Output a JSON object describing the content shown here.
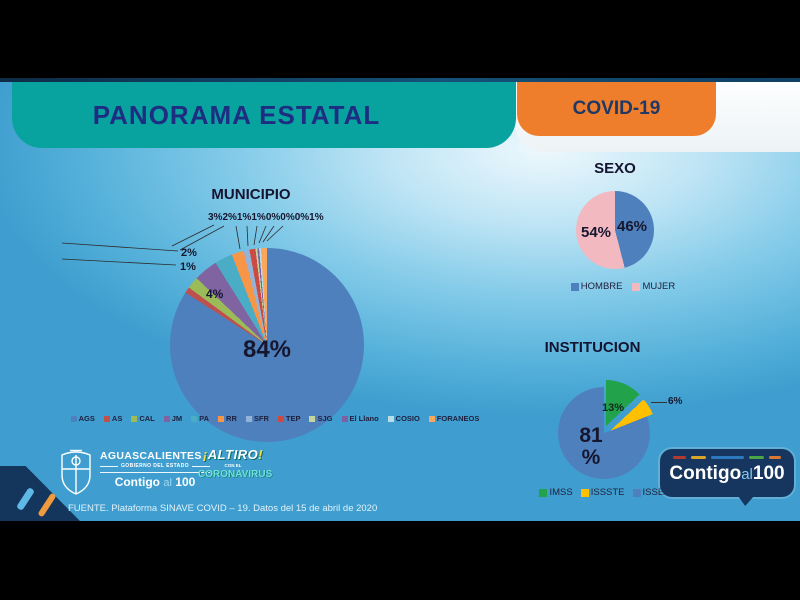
{
  "header": {
    "title": "PANORAMA ESTATAL",
    "badge": "COVID-19"
  },
  "colors": {
    "teal_banner": "#08A39E",
    "orange_banner": "#EE7E2C",
    "title_navy": "#1D2D82",
    "badge_navy": "#16365F",
    "background_blue": "#6FC3E6"
  },
  "chart_data": [
    {
      "type": "pie",
      "title": "MUNICIPIO",
      "labels": [
        "AGS",
        "AS",
        "CAL",
        "JM",
        "PA",
        "RR",
        "SFR",
        "TEP",
        "SJG",
        "El Llano",
        "COSIO",
        "FORANEOS"
      ],
      "values": [
        84,
        1,
        2,
        4,
        3,
        2,
        1,
        1,
        0,
        0,
        0,
        1
      ],
      "colors": [
        "#4E80BD",
        "#C0504D",
        "#9BBB59",
        "#8064A2",
        "#4BACC6",
        "#F79646",
        "#95B3D7",
        "#CB4A42",
        "#C3D69B",
        "#7C61A5",
        "#B7DEE8",
        "#FAA75B"
      ],
      "legend_position": "bottom",
      "annotations": {
        "main": "84%",
        "inside": "4%",
        "left_top": "2%",
        "left_bottom": "1%",
        "top_row": [
          "3%",
          "2%",
          "1%",
          "1%",
          "0%",
          "0%",
          "0%",
          "1%"
        ]
      }
    },
    {
      "type": "pie",
      "title": "SEXO",
      "labels": [
        "HOMBRE",
        "MUJER"
      ],
      "values": [
        46,
        54
      ],
      "colors": [
        "#4E80BD",
        "#F2B9C1"
      ],
      "legend_position": "bottom",
      "annotations": {
        "hombre": "46%",
        "mujer": "54%"
      }
    },
    {
      "type": "pie",
      "title": "INSTITUCION",
      "labels": [
        "IMSS",
        "ISSSTE",
        "ISSEA"
      ],
      "values": [
        13,
        6,
        81
      ],
      "colors": [
        "#21A24B",
        "#FFC000",
        "#4E80BD"
      ],
      "exploded": [
        true,
        true,
        false
      ],
      "legend_position": "bottom",
      "annotations": {
        "main_line1": "81",
        "main_line2": "%",
        "imss": "13%",
        "issste": "6%"
      }
    }
  ],
  "footer": {
    "source": "FUENTE. Plataforma SINAVE COVID – 19. Datos del 15 de abril de 2020",
    "gov": {
      "name": "AGUASCALIENTES",
      "subtitle": "GOBIERNO DEL ESTADO",
      "contigo": "Contigo",
      "al": "al",
      "hundred": "100"
    },
    "altiro": {
      "excl_open": "¡",
      "word": "ALTIRO",
      "excl_close": "!",
      "line2": "CON EL",
      "line3": "CORONAVIRUS"
    },
    "badge": {
      "contigo": "Contigo",
      "al": "al",
      "hundred": "100"
    }
  }
}
